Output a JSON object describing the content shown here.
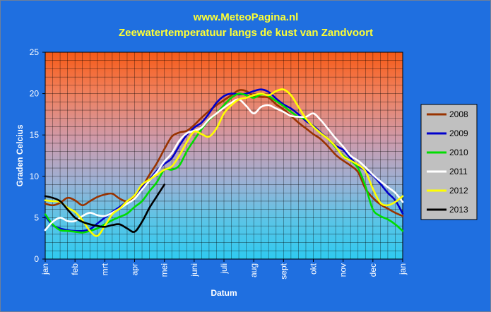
{
  "chart_data": {
    "type": "line",
    "title": "www.MeteoPagina.nl",
    "subtitle": "Zeewatertemperatuur langs de kust van Zandvoort",
    "xlabel": "Datum",
    "ylabel": "Graden Celcius",
    "ylim": [
      0,
      25
    ],
    "yticks": [
      "0",
      "5",
      "10",
      "15",
      "20",
      "25"
    ],
    "xlim": [
      0,
      12
    ],
    "xticks": [
      "jan",
      "feb",
      "mrt",
      "apr",
      "mei",
      "juni",
      "juli",
      "aug",
      "sept",
      "okt",
      "nov",
      "dec",
      "jan"
    ],
    "grid": true,
    "legend_position": "right",
    "series": [
      {
        "name": "2008",
        "color": "#993300",
        "x": [
          0,
          0.25,
          0.5,
          0.75,
          1,
          1.25,
          1.5,
          1.75,
          2,
          2.25,
          2.5,
          2.75,
          3,
          3.25,
          3.5,
          3.75,
          4,
          4.25,
          4.5,
          4.75,
          5,
          5.25,
          5.5,
          5.75,
          6,
          6.25,
          6.5,
          6.75,
          7,
          7.25,
          7.5,
          7.75,
          8,
          8.25,
          8.5,
          8.75,
          9,
          9.25,
          9.5,
          9.75,
          10,
          10.25,
          10.5,
          10.75,
          11,
          11.25,
          11.5,
          11.75,
          12
        ],
        "y": [
          6.7,
          6.5,
          6.8,
          7.4,
          7.1,
          6.5,
          7.0,
          7.5,
          7.8,
          7.9,
          7.3,
          7.0,
          7.6,
          8.7,
          10.2,
          11.6,
          13.3,
          14.8,
          15.3,
          15.5,
          16.2,
          17.1,
          17.9,
          18.6,
          19.2,
          19.8,
          20.4,
          20.3,
          19.7,
          19.6,
          19.5,
          18.7,
          18.1,
          17.3,
          16.5,
          15.8,
          15.1,
          14.5,
          13.6,
          12.6,
          11.9,
          11.3,
          10.5,
          8.5,
          7.4,
          6.6,
          6.1,
          5.6,
          5.2
        ]
      },
      {
        "name": "2009",
        "color": "#0000cc",
        "x": [
          0,
          0.25,
          0.5,
          0.75,
          1,
          1.25,
          1.5,
          1.75,
          2,
          2.25,
          2.5,
          2.75,
          3,
          3.25,
          3.5,
          3.75,
          4,
          4.25,
          4.5,
          4.75,
          5,
          5.25,
          5.5,
          5.75,
          6,
          6.25,
          6.5,
          6.75,
          7,
          7.25,
          7.5,
          7.75,
          8,
          8.25,
          8.5,
          8.75,
          9,
          9.25,
          9.5,
          9.75,
          10,
          10.25,
          10.5,
          10.75,
          11,
          11.25,
          11.5,
          11.75,
          12
        ],
        "y": [
          5.2,
          4.1,
          3.7,
          3.5,
          3.4,
          3.4,
          3.6,
          4.3,
          5.0,
          5.7,
          6.3,
          7.0,
          7.7,
          8.6,
          9.6,
          10.7,
          11.5,
          12.2,
          13.7,
          15.0,
          15.9,
          16.5,
          17.6,
          18.9,
          19.7,
          20.0,
          19.9,
          20.0,
          20.3,
          20.5,
          20.2,
          19.4,
          18.7,
          18.2,
          17.5,
          16.7,
          16.1,
          15.3,
          14.5,
          13.7,
          13.2,
          12.2,
          11.3,
          10.7,
          10.1,
          9.1,
          8.0,
          7.1,
          5.5
        ]
      },
      {
        "name": "2010",
        "color": "#00dd00",
        "x": [
          0,
          0.25,
          0.5,
          0.75,
          1,
          1.25,
          1.5,
          1.75,
          2,
          2.25,
          2.5,
          2.75,
          3,
          3.25,
          3.5,
          3.75,
          4,
          4.25,
          4.5,
          4.75,
          5,
          5.25,
          5.5,
          5.75,
          6,
          6.25,
          6.5,
          6.75,
          7,
          7.25,
          7.5,
          7.75,
          8,
          8.25,
          8.5,
          8.75,
          9,
          9.25,
          9.5,
          9.75,
          10,
          10.25,
          10.5,
          10.75,
          11,
          11.25,
          11.5,
          11.75,
          12
        ],
        "y": [
          5.4,
          4.2,
          3.5,
          3.4,
          3.3,
          3.2,
          3.4,
          3.7,
          4.2,
          4.7,
          5.1,
          5.5,
          6.3,
          7.0,
          8.2,
          9.3,
          10.8,
          10.8,
          11.3,
          13.0,
          14.4,
          15.7,
          16.8,
          17.6,
          18.6,
          19.5,
          20.0,
          19.8,
          19.5,
          19.9,
          19.7,
          19.1,
          18.5,
          17.8,
          17.2,
          16.9,
          16.0,
          15.2,
          14.5,
          13.5,
          12.5,
          11.9,
          11.0,
          8.8,
          6.0,
          5.2,
          4.8,
          4.2,
          3.4
        ]
      },
      {
        "name": "2011",
        "color": "#ffffff",
        "x": [
          0,
          0.25,
          0.5,
          0.75,
          1,
          1.25,
          1.5,
          1.75,
          2,
          2.25,
          2.5,
          2.75,
          3,
          3.25,
          3.5,
          3.75,
          4,
          4.25,
          4.5,
          4.75,
          5,
          5.25,
          5.5,
          5.75,
          6,
          6.25,
          6.5,
          6.75,
          7,
          7.25,
          7.5,
          7.75,
          8,
          8.25,
          8.5,
          8.75,
          9,
          9.25,
          9.5,
          9.75,
          10,
          10.25,
          10.5,
          10.75,
          11,
          11.25,
          11.5,
          11.75,
          12
        ],
        "y": [
          3.5,
          4.5,
          5.0,
          4.6,
          4.6,
          5.2,
          5.6,
          5.3,
          5.2,
          5.6,
          6.1,
          6.7,
          7.3,
          8.4,
          9.5,
          10.5,
          11.8,
          12.8,
          14.3,
          15.2,
          15.5,
          15.9,
          16.9,
          17.6,
          18.3,
          18.9,
          19.3,
          18.5,
          17.6,
          18.4,
          18.6,
          18.2,
          17.8,
          17.3,
          17.2,
          17.2,
          17.6,
          16.8,
          15.7,
          14.6,
          13.6,
          12.5,
          11.9,
          11.1,
          10.2,
          9.4,
          8.7,
          8.0,
          6.9
        ]
      },
      {
        "name": "2012",
        "color": "#ffff00",
        "x": [
          0,
          0.25,
          0.5,
          0.75,
          1,
          1.25,
          1.5,
          1.75,
          2,
          2.25,
          2.5,
          2.75,
          3,
          3.25,
          3.5,
          3.75,
          4,
          4.25,
          4.5,
          4.75,
          5,
          5.25,
          5.5,
          5.75,
          6,
          6.25,
          6.5,
          6.75,
          7,
          7.25,
          7.5,
          7.75,
          8,
          8.25,
          8.5,
          8.75,
          9,
          9.25,
          9.5,
          9.75,
          10,
          10.25,
          10.5,
          10.75,
          11,
          11.25,
          11.5,
          11.75,
          12
        ],
        "y": [
          7.1,
          7.0,
          6.9,
          6.2,
          5.7,
          4.7,
          3.4,
          2.8,
          4.0,
          5.4,
          6.1,
          7.0,
          7.7,
          9.0,
          9.6,
          10.2,
          10.8,
          11.2,
          12.5,
          14.1,
          15.4,
          15.1,
          14.8,
          15.8,
          17.6,
          18.6,
          19.3,
          19.5,
          19.8,
          20.0,
          19.8,
          20.3,
          20.5,
          19.8,
          18.4,
          17.0,
          16.0,
          15.2,
          14.5,
          13.6,
          12.4,
          11.9,
          11.4,
          10.6,
          8.5,
          6.8,
          6.5,
          6.9,
          7.6
        ]
      },
      {
        "name": "2013",
        "color": "#000000",
        "x": [
          0,
          0.25,
          0.5,
          0.75,
          1,
          1.25,
          1.5,
          1.75,
          2,
          2.25,
          2.5,
          2.75,
          3,
          3.25,
          3.5,
          3.75,
          4
        ],
        "y": [
          7.6,
          7.4,
          7.0,
          6.0,
          5.0,
          4.5,
          4.2,
          4.0,
          3.9,
          4.1,
          4.2,
          3.7,
          3.3,
          4.5,
          6.2,
          7.6,
          9.0
        ]
      }
    ]
  }
}
